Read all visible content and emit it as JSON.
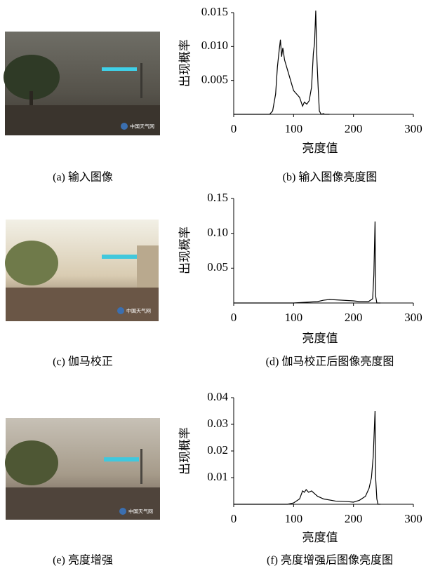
{
  "images": [
    {
      "caption": "(a) 输入图像",
      "watermark": "中国天气网"
    },
    {
      "caption": "(c) 伽马校正",
      "watermark": "中国天气网"
    },
    {
      "caption": "(e) 亮度增强",
      "watermark": "中国天气网"
    }
  ],
  "chart_data": [
    {
      "type": "line",
      "caption": "(b) 输入图像亮度图",
      "xlabel": "亮度值",
      "ylabel": "出现概率",
      "color": "#000000",
      "x": [
        0,
        60,
        65,
        70,
        73,
        76,
        78,
        80,
        82,
        85,
        90,
        95,
        100,
        105,
        110,
        115,
        118,
        122,
        126,
        130,
        133,
        135,
        137,
        139,
        141,
        143,
        146,
        150,
        152,
        160
      ],
      "values": [
        0,
        0,
        0.0005,
        0.003,
        0.007,
        0.0095,
        0.011,
        0.0085,
        0.0098,
        0.008,
        0.0065,
        0.005,
        0.0035,
        0.003,
        0.0025,
        0.0012,
        0.0018,
        0.0015,
        0.002,
        0.004,
        0.009,
        0.0105,
        0.0153,
        0.008,
        0.004,
        0.0005,
        0,
        0.0001,
        0,
        0
      ],
      "xlim": [
        0,
        300
      ],
      "ylim": [
        0,
        0.015
      ],
      "xticks": [
        0,
        100,
        200,
        300
      ],
      "yticks": [
        0.005,
        {
          "value": 0.01,
          "label": "0.010"
        },
        0.015
      ]
    },
    {
      "type": "line",
      "caption": "(d) 伽马校正后图像亮度图",
      "xlabel": "亮度值",
      "ylabel": "出现概率",
      "color": "#000000",
      "x": [
        0,
        100,
        120,
        140,
        150,
        160,
        180,
        200,
        210,
        225,
        232,
        234,
        236,
        237,
        239,
        245
      ],
      "values": [
        0,
        0,
        0.001,
        0.002,
        0.004,
        0.005,
        0.004,
        0.003,
        0.002,
        0.002,
        0.006,
        0.04,
        0.117,
        0.01,
        0,
        0
      ],
      "xlim": [
        0,
        300
      ],
      "ylim": [
        0,
        0.15
      ],
      "xticks": [
        0,
        100,
        200,
        300
      ],
      "yticks": [
        0.05,
        {
          "value": 0.1,
          "label": "0.10"
        },
        0.15
      ]
    },
    {
      "type": "line",
      "caption": "(f) 亮度增强后图像亮度图",
      "xlabel": "亮度值",
      "ylabel": "出现概率",
      "color": "#000000",
      "x": [
        0,
        90,
        100,
        110,
        115,
        118,
        121,
        125,
        130,
        135,
        140,
        150,
        170,
        190,
        200,
        210,
        220,
        226,
        230,
        233,
        236,
        237,
        239,
        241,
        245
      ],
      "values": [
        0,
        0,
        0.0005,
        0.002,
        0.005,
        0.0045,
        0.0055,
        0.0045,
        0.005,
        0.004,
        0.003,
        0.002,
        0.0012,
        0.001,
        0.0008,
        0.0015,
        0.003,
        0.006,
        0.01,
        0.018,
        0.035,
        0.01,
        0.002,
        0,
        0
      ],
      "xlim": [
        0,
        300
      ],
      "ylim": [
        0,
        0.04
      ],
      "xticks": [
        0,
        100,
        200,
        300
      ],
      "yticks": [
        0.01,
        0.02,
        0.03,
        0.04
      ]
    }
  ]
}
